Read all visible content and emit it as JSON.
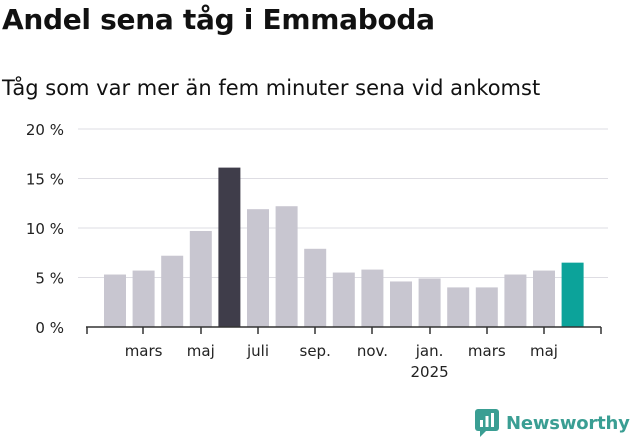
{
  "header": {
    "title": "Andel sena tåg i Emmaboda",
    "subtitle": "Tåg som var mer än fem minuter sena vid ankomst"
  },
  "brand": {
    "name": "Newsworthy",
    "icon": "newsworthy-logo-icon",
    "color": "#3a9e93"
  },
  "chart_data": {
    "type": "bar",
    "title": "Andel sena tåg i Emmaboda",
    "subtitle": "Tåg som var mer än fem minuter sena vid ankomst",
    "xlabel": "",
    "ylabel": "",
    "ylim": [
      0,
      20
    ],
    "yticks": [
      0,
      5,
      10,
      15,
      20
    ],
    "ytick_labels": [
      "0 %",
      "5 %",
      "10 %",
      "15 %",
      "20 %"
    ],
    "grid": true,
    "categories": [
      "2024-02",
      "2024-03",
      "2024-04",
      "2024-05",
      "2024-06",
      "2024-07",
      "2024-08",
      "2024-09",
      "2024-10",
      "2024-11",
      "2024-12",
      "2025-01",
      "2025-02",
      "2025-03",
      "2025-04",
      "2025-05",
      "2025-06"
    ],
    "values": [
      5.3,
      5.7,
      7.2,
      9.7,
      16.1,
      11.9,
      12.2,
      7.9,
      5.5,
      5.8,
      4.6,
      4.9,
      4.0,
      4.0,
      5.3,
      5.7,
      6.5
    ],
    "x_tick_labels": [
      {
        "category": "2024-03",
        "label": "mars"
      },
      {
        "category": "2024-05",
        "label": "maj"
      },
      {
        "category": "2024-07",
        "label": "juli"
      },
      {
        "category": "2024-09",
        "label": "sep."
      },
      {
        "category": "2024-11",
        "label": "nov."
      },
      {
        "category": "2025-01",
        "label": "jan.",
        "sublabel": "2025"
      },
      {
        "category": "2025-03",
        "label": "mars"
      },
      {
        "category": "2025-05",
        "label": "maj"
      }
    ],
    "colors": {
      "default": "#c8c6d0",
      "highlight_max": "#3f3d4a",
      "highlight_latest": "#0ca39a"
    },
    "highlight": {
      "max": "2024-06",
      "latest": "2025-06"
    }
  }
}
